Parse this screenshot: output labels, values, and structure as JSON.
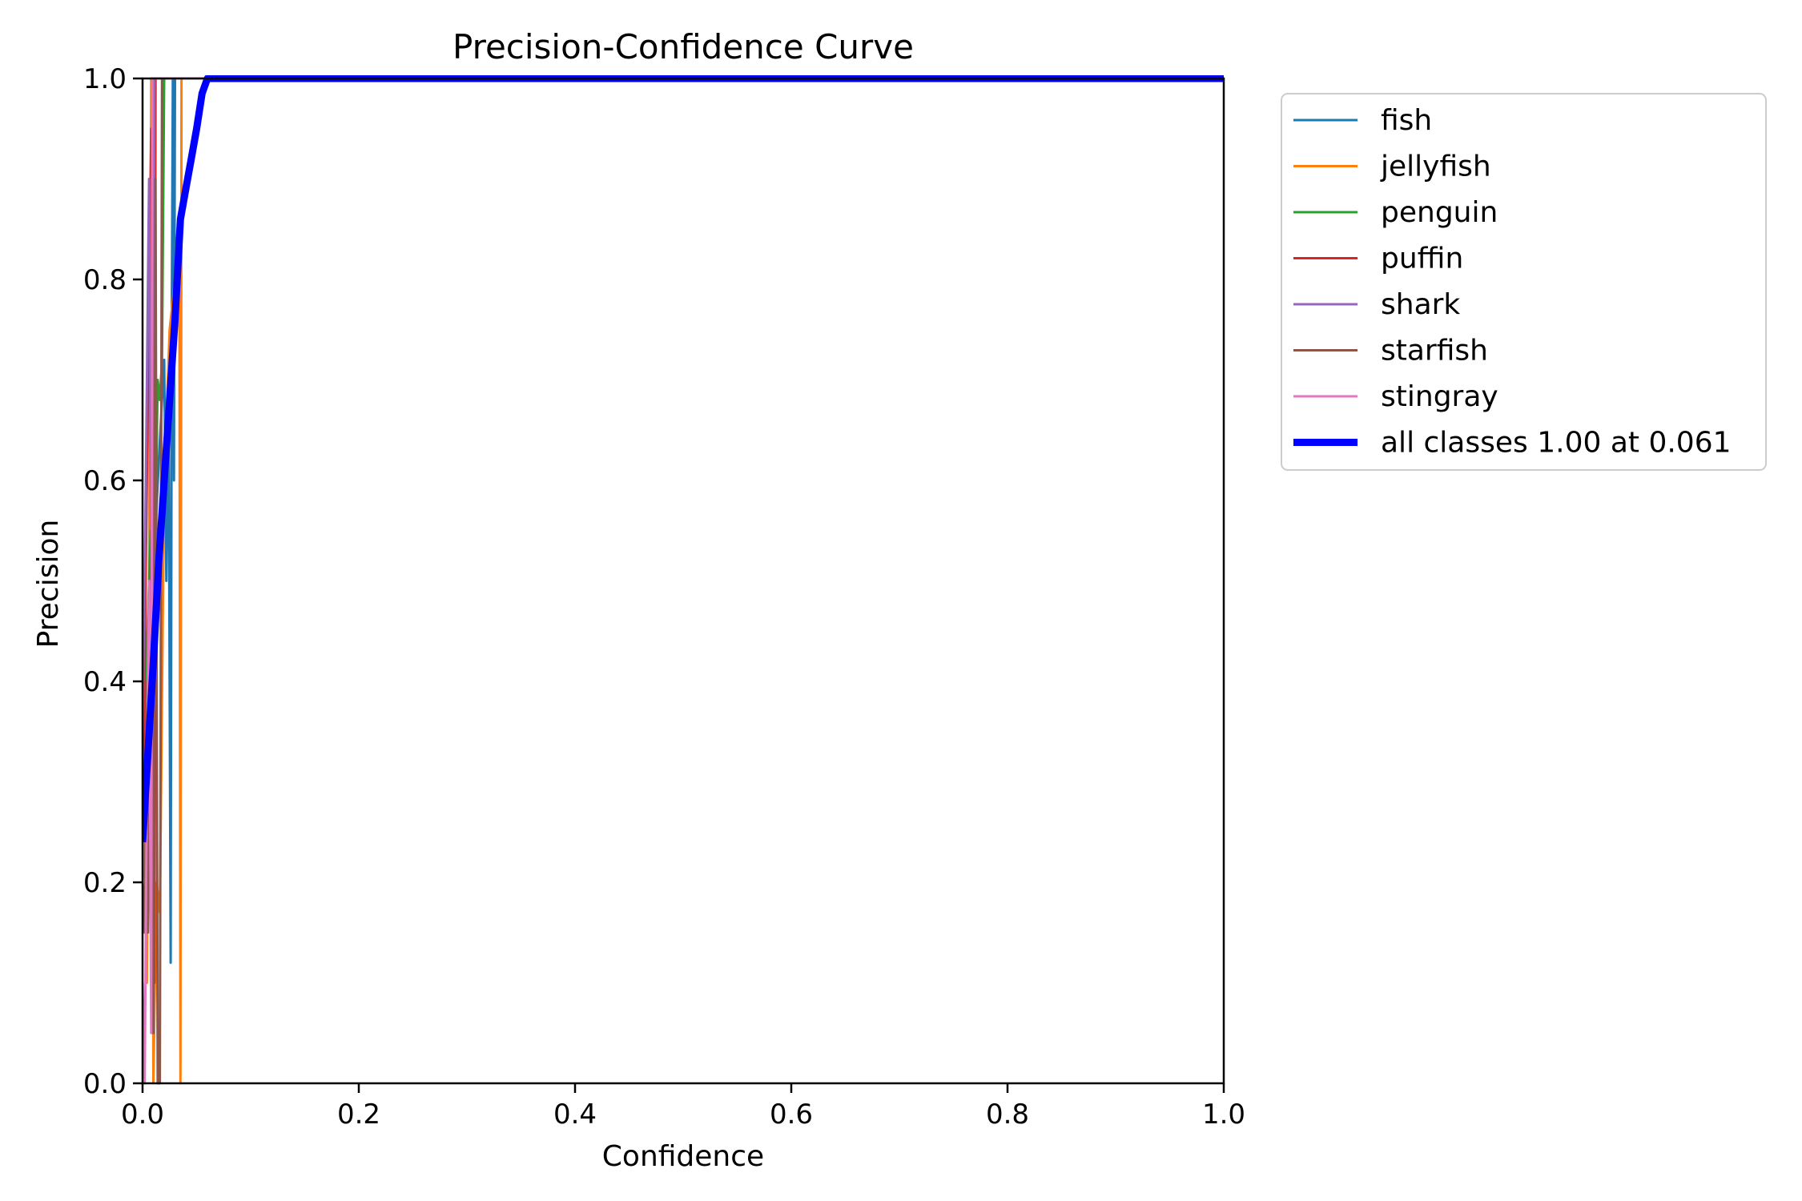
{
  "chart_data": {
    "type": "line",
    "title": "Precision-Confidence Curve",
    "xlabel": "Confidence",
    "ylabel": "Precision",
    "xlim": [
      0.0,
      1.0
    ],
    "ylim": [
      0.0,
      1.0
    ],
    "xticks": [
      0.0,
      0.2,
      0.4,
      0.6,
      0.8,
      1.0
    ],
    "xtick_labels": [
      "0.0",
      "0.2",
      "0.4",
      "0.6",
      "0.8",
      "1.0"
    ],
    "yticks": [
      0.0,
      0.2,
      0.4,
      0.6,
      0.8,
      1.0
    ],
    "ytick_labels": [
      "0.0",
      "0.2",
      "0.4",
      "0.6",
      "0.8",
      "1.0"
    ],
    "grid": false,
    "legend_position": "outside-upper-right",
    "series": [
      {
        "name": "fish",
        "color": "#1f77b4",
        "thick": false,
        "x": [
          0.0,
          0.003,
          0.006,
          0.009,
          0.012,
          0.015,
          0.018,
          0.02,
          0.022,
          0.024,
          0.026,
          0.027,
          0.028,
          0.029,
          0.03,
          0.05,
          0.1,
          0.3,
          0.5,
          0.7,
          0.9,
          1.0
        ],
        "y": [
          0.3,
          0.35,
          0.4,
          0.48,
          0.55,
          0.62,
          0.68,
          0.72,
          0.5,
          0.7,
          0.12,
          0.75,
          1.0,
          0.6,
          1.0,
          1.0,
          1.0,
          1.0,
          1.0,
          1.0,
          1.0,
          1.0
        ]
      },
      {
        "name": "jellyfish",
        "color": "#ff7f0e",
        "thick": false,
        "x": [
          0.0,
          0.002,
          0.004,
          0.006,
          0.008,
          0.01,
          0.013,
          0.016,
          0.02,
          0.025,
          0.03,
          0.034,
          0.035,
          0.036,
          0.037,
          0.05,
          0.1,
          0.5,
          1.0
        ],
        "y": [
          0.2,
          0.24,
          0.1,
          0.5,
          1.0,
          0.0,
          0.2,
          0.17,
          0.6,
          0.75,
          0.8,
          0.85,
          0.0,
          1.0,
          1.0,
          1.0,
          1.0,
          1.0,
          1.0
        ]
      },
      {
        "name": "penguin",
        "color": "#2ca02c",
        "thick": false,
        "x": [
          0.0,
          0.003,
          0.006,
          0.009,
          0.012,
          0.014,
          0.016,
          0.018,
          0.02,
          0.05,
          0.1,
          0.5,
          1.0
        ],
        "y": [
          0.3,
          0.4,
          0.5,
          0.6,
          0.55,
          0.7,
          0.68,
          0.72,
          1.0,
          1.0,
          1.0,
          1.0,
          1.0
        ]
      },
      {
        "name": "puffin",
        "color": "#d62728",
        "thick": false,
        "x": [
          0.0,
          0.004,
          0.008,
          0.011,
          0.012,
          0.013,
          0.05,
          0.1,
          0.5,
          1.0
        ],
        "y": [
          0.25,
          0.6,
          0.95,
          0.1,
          1.0,
          1.0,
          1.0,
          1.0,
          1.0,
          1.0
        ]
      },
      {
        "name": "shark",
        "color": "#9467bd",
        "thick": false,
        "x": [
          0.0,
          0.003,
          0.006,
          0.009,
          0.011,
          0.012,
          0.05,
          0.1,
          0.5,
          1.0
        ],
        "y": [
          0.35,
          0.6,
          0.9,
          0.3,
          1.0,
          1.0,
          1.0,
          1.0,
          1.0,
          1.0
        ]
      },
      {
        "name": "starfish",
        "color": "#8c564b",
        "thick": false,
        "x": [
          0.0,
          0.002,
          0.004,
          0.005,
          0.006,
          0.008,
          0.01,
          0.012,
          0.014,
          0.016,
          0.018,
          0.05,
          0.1,
          0.5,
          1.0
        ],
        "y": [
          0.2,
          0.15,
          0.4,
          0.15,
          0.3,
          0.55,
          0.05,
          0.9,
          0.0,
          0.0,
          1.0,
          1.0,
          1.0,
          1.0,
          1.0
        ]
      },
      {
        "name": "stingray",
        "color": "#e377c2",
        "thick": false,
        "x": [
          0.0,
          0.002,
          0.004,
          0.006,
          0.008,
          0.009,
          0.01,
          0.05,
          0.1,
          0.5,
          1.0
        ],
        "y": [
          0.1,
          0.0,
          0.3,
          0.5,
          0.05,
          1.0,
          1.0,
          1.0,
          1.0,
          1.0,
          1.0
        ]
      },
      {
        "name": "all classes 1.00 at 0.061",
        "color": "#0000ff",
        "thick": true,
        "x": [
          0.0,
          0.005,
          0.01,
          0.015,
          0.02,
          0.025,
          0.03,
          0.035,
          0.04,
          0.045,
          0.05,
          0.055,
          0.06,
          0.061,
          0.1,
          0.2,
          0.4,
          0.6,
          0.8,
          1.0
        ],
        "y": [
          0.24,
          0.33,
          0.42,
          0.52,
          0.6,
          0.68,
          0.76,
          0.86,
          0.89,
          0.92,
          0.95,
          0.985,
          1.0,
          1.0,
          1.0,
          1.0,
          1.0,
          1.0,
          1.0,
          1.0
        ]
      }
    ]
  }
}
